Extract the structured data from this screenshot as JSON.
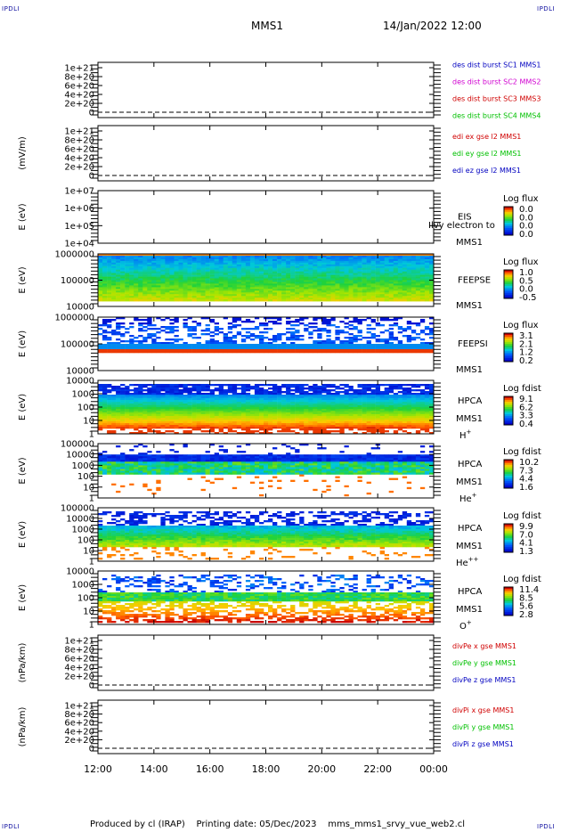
{
  "header": {
    "title": "MMS1",
    "datetime": "14/Jan/2022 12:00"
  },
  "corner_label": "IPDLI",
  "footer": {
    "producer": "Produced by cl (IRAP)",
    "printing": "Printing date: 05/Dec/2023",
    "script": "mms_mms1_srvy_vue_web2.cl"
  },
  "colors": {
    "axis": "#000000",
    "red": "#d00000",
    "magenta": "#d000d0",
    "green": "#00c000",
    "blue": "#0000c0"
  },
  "chart_data": {
    "type": "heatmap",
    "x_tick_labels": [
      "12:00",
      "14:00",
      "16:00",
      "18:00",
      "20:00",
      "22:00",
      "00:00"
    ],
    "panels": [
      {
        "id": "des",
        "kind": "line",
        "ylabel": "",
        "yticks": [
          "1e+21",
          "8e+20",
          "6e+20",
          "4e+20",
          "2e+20",
          "0"
        ],
        "legend": [
          {
            "text": "des dist burst SC1 MMS1",
            "color": "#0000c0"
          },
          {
            "text": "des dist burst SC2 MMS2",
            "color": "#d000d0"
          },
          {
            "text": "des dist burst SC3 MMS3",
            "color": "#d00000"
          },
          {
            "text": "des dist burst SC4 MMS4",
            "color": "#00c000"
          }
        ]
      },
      {
        "id": "edi",
        "kind": "line",
        "ylabel": "(mV/m)",
        "yticks": [
          "1e+21",
          "8e+20",
          "6e+20",
          "4e+20",
          "2e+20",
          "0"
        ],
        "legend": [
          {
            "text": "edi ex gse l2 MMS1",
            "color": "#d00000"
          },
          {
            "text": "edi ey gse l2 MMS1",
            "color": "#00c000"
          },
          {
            "text": "edi ez gse l2 MMS1",
            "color": "#0000c0"
          }
        ]
      },
      {
        "id": "eis",
        "kind": "spectro",
        "ylabel": "E (eV)",
        "yticks": [
          "1e+07",
          "1e+06",
          "1e+05",
          "1e+04"
        ],
        "side": [
          "EIS",
          "MMS1"
        ],
        "overlay": "Ilvy electron to",
        "cb_title": "Log flux",
        "cb_ticks": [
          "0.0",
          "0.0",
          "0.0",
          "0.0"
        ]
      },
      {
        "id": "feepse",
        "kind": "spectro",
        "ylabel": "E (eV)",
        "yticks": [
          "1000000",
          "100000",
          "10000"
        ],
        "side": [
          "FEEPSE",
          "MMS1"
        ],
        "cb_title": "Log flux",
        "cb_ticks": [
          "1.0",
          "0.5",
          "0.0",
          "-0.5"
        ]
      },
      {
        "id": "feepsi",
        "kind": "spectro",
        "ylabel": "E (eV)",
        "yticks": [
          "1000000",
          "100000",
          "10000"
        ],
        "side": [
          "FEEPSI",
          "MMS1"
        ],
        "cb_title": "Log flux",
        "cb_ticks": [
          "3.1",
          "2.1",
          "1.2",
          "0.2"
        ]
      },
      {
        "id": "hpca_h",
        "kind": "spectro",
        "ylabel": "E (eV)",
        "yticks": [
          "10000",
          "1000",
          "100",
          "10",
          "1"
        ],
        "side": [
          "HPCA",
          "MMS1"
        ],
        "species": "H",
        "charge": "+",
        "cb_title": "Log fdist",
        "cb_ticks": [
          "9.1",
          "6.2",
          "3.3",
          "0.4"
        ]
      },
      {
        "id": "hpca_he",
        "kind": "spectro",
        "ylabel": "E (eV)",
        "yticks": [
          "100000",
          "10000",
          "1000",
          "100",
          "10",
          "1"
        ],
        "side": [
          "HPCA",
          "MMS1"
        ],
        "species": "He",
        "charge": "+",
        "cb_title": "Log fdist",
        "cb_ticks": [
          "10.2",
          "7.3",
          "4.4",
          "1.6"
        ]
      },
      {
        "id": "hpca_hepp",
        "kind": "spectro",
        "ylabel": "E (eV)",
        "yticks": [
          "100000",
          "10000",
          "1000",
          "100",
          "10",
          "1"
        ],
        "side": [
          "HPCA",
          "MMS1"
        ],
        "species": "He",
        "charge": "++",
        "cb_title": "Log fdist",
        "cb_ticks": [
          "9.9",
          "7.0",
          "4.1",
          "1.3"
        ]
      },
      {
        "id": "hpca_o",
        "kind": "spectro",
        "ylabel": "E (eV)",
        "yticks": [
          "10000",
          "1000",
          "100",
          "10",
          "1"
        ],
        "side": [
          "HPCA",
          "MMS1"
        ],
        "species": "O",
        "charge": "+",
        "cb_title": "Log fdist",
        "cb_ticks": [
          "11.4",
          "8.5",
          "5.6",
          "2.8"
        ]
      },
      {
        "id": "divpe",
        "kind": "line",
        "ylabel": "(nPa/km)",
        "yticks": [
          "1e+21",
          "8e+20",
          "6e+20",
          "4e+20",
          "2e+20",
          "0"
        ],
        "legend": [
          {
            "text": "divPe x gse MMS1",
            "color": "#d00000"
          },
          {
            "text": "divPe y gse MMS1",
            "color": "#00c000"
          },
          {
            "text": "divPe z gse MMS1",
            "color": "#0000c0"
          }
        ]
      },
      {
        "id": "divpi",
        "kind": "line",
        "ylabel": "(nPa/km)",
        "yticks": [
          "1e+21",
          "8e+20",
          "6e+20",
          "4e+20",
          "2e+20",
          "0"
        ],
        "legend": [
          {
            "text": "divPi x gse MMS1",
            "color": "#d00000"
          },
          {
            "text": "divPi y gse MMS1",
            "color": "#00c000"
          },
          {
            "text": "divPi z gse MMS1",
            "color": "#0000c0"
          }
        ]
      }
    ]
  }
}
